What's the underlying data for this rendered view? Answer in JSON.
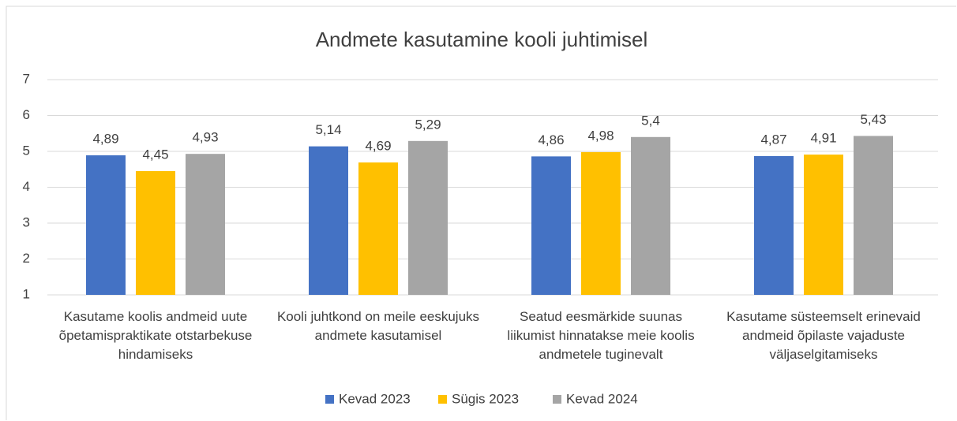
{
  "chart_data": {
    "type": "bar",
    "title": "Andmete kasutamine kooli juhtimisel",
    "categories": [
      "Kasutame koolis andmeid uute õpetamispraktikate otstarbekuse hindamiseks",
      "Kooli juhtkond on meile eeskujuks andmete kasutamisel",
      "Seatud eesmärkide suunas liikumist hinnatakse meie koolis andmetele tuginevalt",
      "Kasutame süsteemselt erinevaid andmeid õpilaste vajaduste väljaselgitamiseks"
    ],
    "series": [
      {
        "name": "Kevad 2023",
        "color": "#4472c4",
        "values": [
          4.89,
          5.14,
          4.86,
          4.87
        ],
        "value_labels": [
          "4,89",
          "5,14",
          "4,86",
          "4,87"
        ]
      },
      {
        "name": "Sügis 2023",
        "color": "#ffc000",
        "values": [
          4.45,
          4.69,
          4.98,
          4.91
        ],
        "value_labels": [
          "4,45",
          "4,69",
          "4,98",
          "4,91"
        ]
      },
      {
        "name": "Kevad 2024",
        "color": "#a5a5a5",
        "values": [
          4.93,
          5.29,
          5.4,
          5.43
        ],
        "value_labels": [
          "4,93",
          "5,29",
          "5,4",
          "5,43"
        ]
      }
    ],
    "ylim": [
      1,
      7
    ],
    "yticks": [
      1,
      2,
      3,
      4,
      5,
      6,
      7
    ],
    "grid": true,
    "legend": "bottom"
  }
}
